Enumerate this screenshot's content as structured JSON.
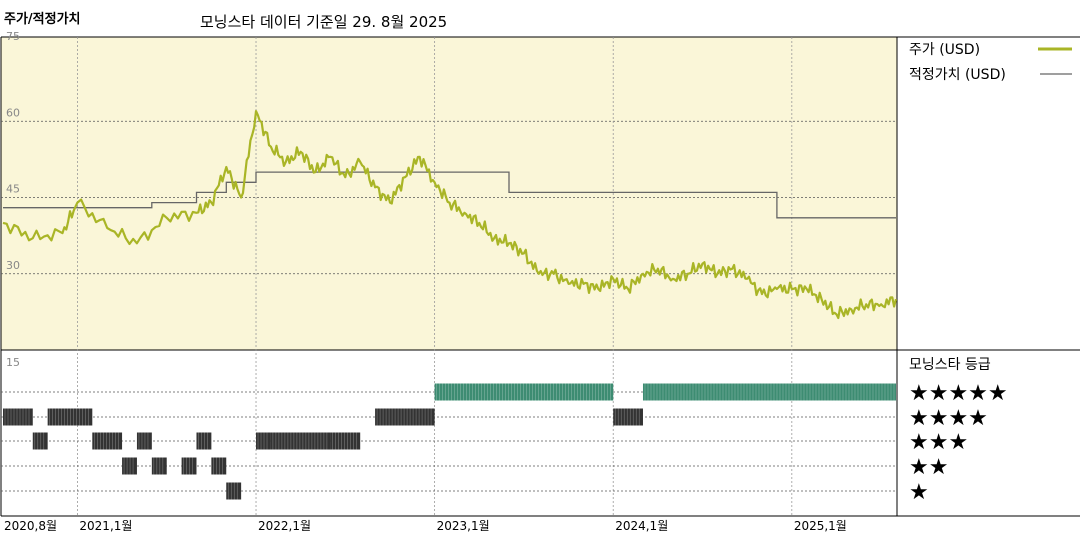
{
  "header": {
    "title": "주가/적정가치",
    "subtitle": "모닝스타 데이터 기준일 29. 8월 2025"
  },
  "colors": {
    "price": "#a9b526",
    "fair_value": "#666666",
    "panel_bg": "#faf6d8",
    "five_star_bar": "#3d8c72",
    "star_bar": "#333333"
  },
  "chart_data": [
    {
      "type": "line",
      "ylim": [
        15,
        75
      ],
      "y_ticks": [
        "75",
        "60",
        "45",
        "30",
        "15"
      ],
      "x_ticks": [
        "2020,8월",
        "2021,1월",
        "2022,1월",
        "2023,1월",
        "2024,1월",
        "2025,1월"
      ],
      "x_range": [
        "2020-08",
        "2025-08"
      ],
      "legend_position": "right",
      "series": [
        {
          "name": "주가 (USD)",
          "dates": [
            "2020-08",
            "2020-10",
            "2020-12",
            "2021-01",
            "2021-03",
            "2021-05",
            "2021-07",
            "2021-09",
            "2021-10",
            "2021-11",
            "2021-12",
            "2022-01",
            "2022-02",
            "2022-03",
            "2022-04",
            "2022-05",
            "2022-06",
            "2022-07",
            "2022-08",
            "2022-09",
            "2022-10",
            "2022-11",
            "2022-12",
            "2023-01",
            "2023-02",
            "2023-03",
            "2023-04",
            "2023-05",
            "2023-06",
            "2023-07",
            "2023-08",
            "2023-09",
            "2023-10",
            "2023-11",
            "2023-12",
            "2024-01",
            "2024-02",
            "2024-03",
            "2024-04",
            "2024-05",
            "2024-06",
            "2024-07",
            "2024-08",
            "2024-09",
            "2024-10",
            "2024-11",
            "2024-12",
            "2025-01",
            "2025-02",
            "2025-03",
            "2025-04",
            "2025-05",
            "2025-06",
            "2025-07",
            "2025-08"
          ],
          "values": [
            40,
            37,
            38,
            44,
            39,
            36,
            41,
            42,
            44,
            51,
            45,
            62,
            55,
            52,
            54,
            50,
            53,
            49,
            52,
            47,
            44,
            49,
            53,
            48,
            44,
            42,
            40,
            37,
            36,
            34,
            30,
            30,
            28,
            28,
            27,
            29,
            27,
            30,
            31,
            29,
            30,
            32,
            30,
            31,
            29,
            26,
            27,
            27,
            27,
            25,
            22,
            23,
            24,
            24,
            25
          ]
        },
        {
          "name": "적정가치 (USD)",
          "steps": [
            {
              "from": "2020-08",
              "to": "2021-06",
              "value": 43
            },
            {
              "from": "2021-06",
              "to": "2021-09",
              "value": 44
            },
            {
              "from": "2021-09",
              "to": "2021-11",
              "value": 46
            },
            {
              "from": "2021-11",
              "to": "2022-01",
              "value": 48
            },
            {
              "from": "2022-01",
              "to": "2023-06",
              "value": 50
            },
            {
              "from": "2023-06",
              "to": "2024-12",
              "value": 46
            },
            {
              "from": "2024-12",
              "to": "2025-08",
              "value": 41
            }
          ]
        }
      ]
    },
    {
      "type": "rating_timeline",
      "title": "모닝스타 등급",
      "levels": [
        "★★★★★",
        "★★★★",
        "★★★",
        "★★",
        "★"
      ],
      "segments": [
        {
          "stars": 4,
          "from": "2020-08",
          "to": "2020-10"
        },
        {
          "stars": 4,
          "from": "2020-11",
          "to": "2021-02"
        },
        {
          "stars": 3,
          "from": "2020-10",
          "to": "2020-11"
        },
        {
          "stars": 3,
          "from": "2021-02",
          "to": "2021-04"
        },
        {
          "stars": 3,
          "from": "2021-05",
          "to": "2021-06"
        },
        {
          "stars": 3,
          "from": "2021-09",
          "to": "2021-10"
        },
        {
          "stars": 3,
          "from": "2022-01",
          "to": "2022-02"
        },
        {
          "stars": 3,
          "from": "2022-02",
          "to": "2022-06"
        },
        {
          "stars": 3,
          "from": "2022-06",
          "to": "2022-08"
        },
        {
          "stars": 2,
          "from": "2021-04",
          "to": "2021-05"
        },
        {
          "stars": 2,
          "from": "2021-06",
          "to": "2021-07"
        },
        {
          "stars": 2,
          "from": "2021-08",
          "to": "2021-09"
        },
        {
          "stars": 2,
          "from": "2021-10",
          "to": "2021-11"
        },
        {
          "stars": 1,
          "from": "2021-11",
          "to": "2021-12"
        },
        {
          "stars": 4,
          "from": "2022-09",
          "to": "2023-01"
        },
        {
          "stars": 5,
          "from": "2023-01",
          "to": "2024-01"
        },
        {
          "stars": 4,
          "from": "2024-01",
          "to": "2024-03"
        },
        {
          "stars": 5,
          "from": "2024-03",
          "to": "2025-08"
        }
      ]
    }
  ]
}
